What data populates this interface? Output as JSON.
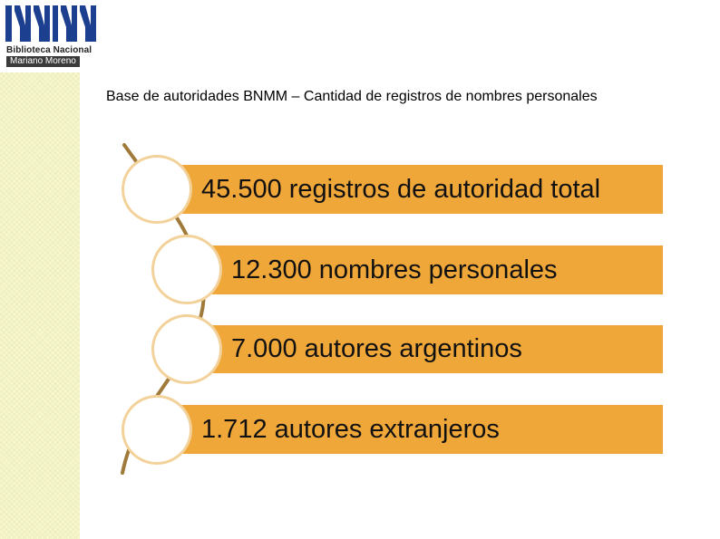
{
  "logo": {
    "line1": "Biblioteca Nacional",
    "line2": "Mariano Moreno"
  },
  "title": "Base de autoridades BNMM – Cantidad de registros de nombres personales",
  "items": [
    {
      "label": "45.500 registros de autoridad total"
    },
    {
      "label": "12.300 nombres personales"
    },
    {
      "label": "7.000 autores argentinos"
    },
    {
      "label": "1.712 autores extranjeros"
    }
  ],
  "colors": {
    "bar": "#f0a73a",
    "circle_border": "#f2d29a",
    "spine": "#a07a3a"
  }
}
